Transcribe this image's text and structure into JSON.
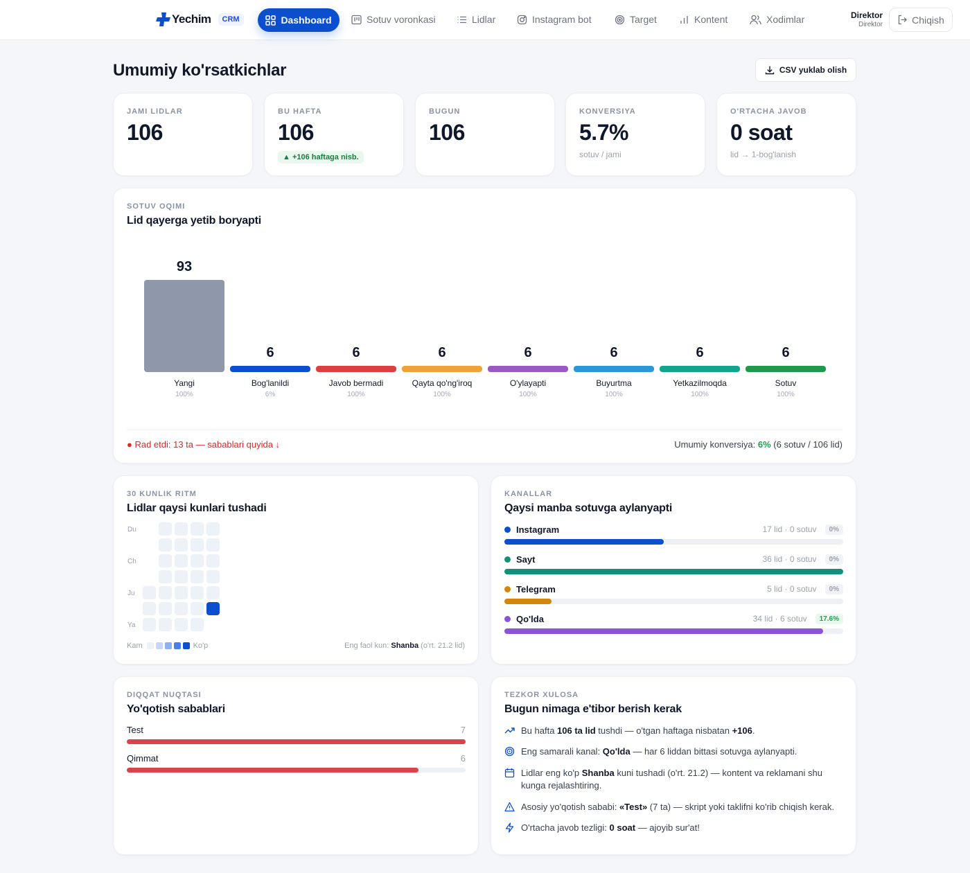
{
  "nav": {
    "brand": "Yechim",
    "badge": "CRM",
    "active": "Dashboard",
    "items": [
      "Sotuv voronkasi",
      "Lidlar",
      "Instagram bot",
      "Target",
      "Kontent",
      "Xodimlar"
    ],
    "role_title": "Direktor",
    "role_sub": "Direktor",
    "logout": "Chiqish"
  },
  "header": {
    "title": "Umumiy ko'rsatkichlar",
    "csv": "CSV yuklab olish"
  },
  "stats": [
    {
      "label": "JAMI LIDLAR",
      "value": "106",
      "sub": "",
      "badge": ""
    },
    {
      "label": "BU HAFTA",
      "value": "106",
      "sub": "",
      "badge": "▲ +106 haftaga nisb."
    },
    {
      "label": "BUGUN",
      "value": "106",
      "sub": "",
      "badge": ""
    },
    {
      "label": "KONVERSIYA",
      "value": "5.7%",
      "sub": "sotuv / jami",
      "badge": ""
    },
    {
      "label": "O'RTACHA JAVOB",
      "value": "0 soat",
      "sub": "lid → 1-bog'lanish",
      "badge": ""
    }
  ],
  "funnel": {
    "kicker": "SOTUV OQIMI",
    "title": "Lid qayerga yetib boryapti",
    "rejected": "● Rad etdi: 13 ta — sabablari quyida ↓",
    "conv_prefix": "Umumiy konversiya: ",
    "conv_value": "6%",
    "conv_suffix": " (6 sotuv / 106 lid)"
  },
  "chart_data": {
    "type": "bar",
    "categories": [
      "Yangi",
      "Bog'lanildi",
      "Javob bermadi",
      "Qayta qo'ng'iroq",
      "O'ylayapti",
      "Buyurtma",
      "Yetkazilmoqda",
      "Sotuv"
    ],
    "values": [
      93,
      6,
      6,
      6,
      6,
      6,
      6,
      6
    ],
    "percent_labels": [
      "100%",
      "6%",
      "100%",
      "100%",
      "100%",
      "100%",
      "100%",
      "100%"
    ],
    "colors": [
      "#8f98aa",
      "#0b4fcf",
      "#dc3f3f",
      "#f0a23a",
      "#9b59c4",
      "#2b97d6",
      "#12a58e",
      "#1f9a4c"
    ],
    "title": "",
    "xlabel": "",
    "ylabel": ""
  },
  "rhythm": {
    "kicker": "30 KUNLIK RITM",
    "title": "Lidlar qaysi kunlari tushadi",
    "days": [
      "Du",
      "Ch",
      "Ju",
      "Ya"
    ],
    "legend_low": "Kam",
    "legend_high": "Ko'p",
    "active_prefix": "Eng faol kun: ",
    "active_day": "Shanba",
    "active_suffix": " (o'rt. 21.2 lid)",
    "grid": [
      [
        null,
        0,
        0,
        0,
        0
      ],
      [
        null,
        0,
        0,
        0,
        0
      ],
      [
        null,
        0,
        0,
        0,
        0
      ],
      [
        null,
        0,
        0,
        0,
        0
      ],
      [
        0,
        0,
        0,
        0,
        0
      ],
      [
        0,
        0,
        0,
        0,
        4
      ],
      [
        0,
        0,
        0,
        0,
        null
      ]
    ],
    "scale": [
      "#edf1f8",
      "#c7d7f7",
      "#8fb0ef",
      "#4a7fe3",
      "#0b4fcf"
    ]
  },
  "channels": {
    "kicker": "KANALLAR",
    "title": "Qaysi manba sotuvga aylanyapti",
    "items": [
      {
        "name": "Instagram",
        "meta": "17 lid · 0 sotuv",
        "pct": "0%",
        "color": "#0b4fcf",
        "fill": 0.47,
        "positive": false
      },
      {
        "name": "Sayt",
        "meta": "36 lid · 0 sotuv",
        "pct": "0%",
        "color": "#12907a",
        "fill": 1.0,
        "positive": false
      },
      {
        "name": "Telegram",
        "meta": "5 lid · 0 sotuv",
        "pct": "0%",
        "color": "#d4860b",
        "fill": 0.14,
        "positive": false
      },
      {
        "name": "Qo'lda",
        "meta": "34 lid · 6 sotuv",
        "pct": "17.6%",
        "color": "#8b54d6",
        "fill": 0.94,
        "positive": true
      }
    ]
  },
  "loss": {
    "kicker": "DIQQAT NUQTASI",
    "title": "Yo'qotish sabablari",
    "items": [
      {
        "name": "Test",
        "count": "7",
        "fill": 1.0
      },
      {
        "name": "Qimmat",
        "count": "6",
        "fill": 0.86
      }
    ]
  },
  "summary": {
    "kicker": "TEZKOR XULOSA",
    "title": "Bugun nimaga e'tibor berish kerak",
    "items": [
      {
        "icon": "trend-up-icon",
        "parts": [
          [
            "Bu hafta ",
            false
          ],
          [
            "106 ta lid",
            true
          ],
          [
            " tushdi — o'tgan haftaga nisbatan ",
            false
          ],
          [
            "+106",
            true
          ],
          [
            ".",
            false
          ]
        ]
      },
      {
        "icon": "target-icon",
        "parts": [
          [
            "Eng samarali kanal: ",
            false
          ],
          [
            "Qo'lda",
            true
          ],
          [
            " — har 6 liddan bittasi sotuvga aylanyapti.",
            false
          ]
        ]
      },
      {
        "icon": "calendar-icon",
        "parts": [
          [
            "Lidlar eng ko'p ",
            false
          ],
          [
            "Shanba",
            true
          ],
          [
            " kuni tushadi (o'rt. 21.2) — kontent va reklamani shu kunga rejalashtiring.",
            false
          ]
        ]
      },
      {
        "icon": "warning-icon",
        "parts": [
          [
            "Asosiy yo'qotish sababi: ",
            false
          ],
          [
            "«Test»",
            true
          ],
          [
            " (7 ta) — skript yoki taklifni ko'rib chiqish kerak.",
            false
          ]
        ]
      },
      {
        "icon": "bolt-icon",
        "parts": [
          [
            "O'rtacha javob tezligi: ",
            false
          ],
          [
            "0 soat",
            true
          ],
          [
            " — ajoyib sur'at!",
            false
          ]
        ]
      }
    ]
  }
}
